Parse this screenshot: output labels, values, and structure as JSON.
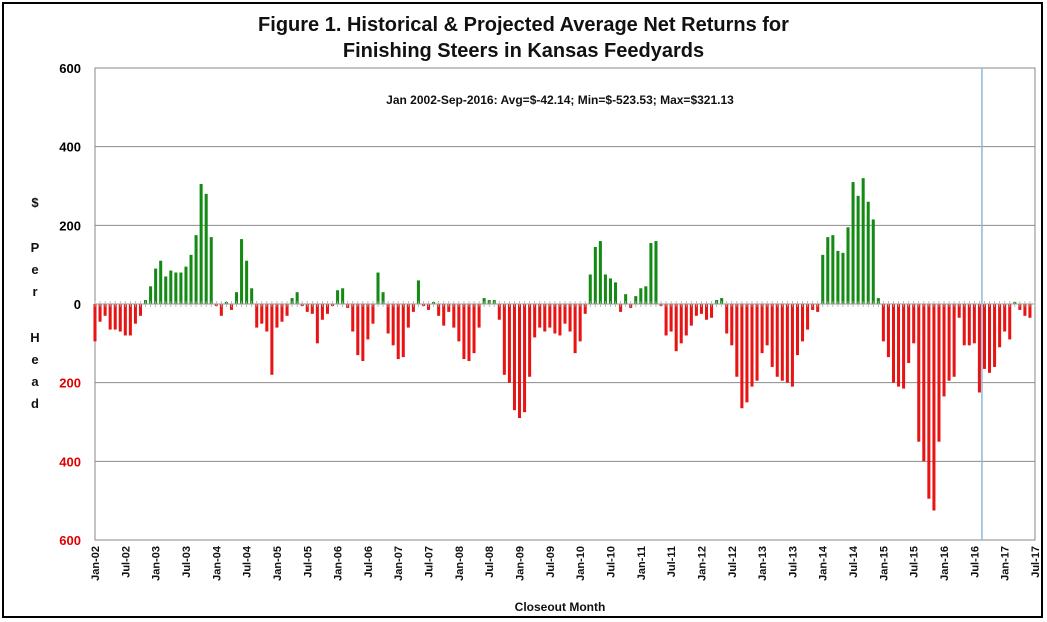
{
  "chart_data": {
    "type": "bar",
    "title": "Figure 1.  Historical & Projected Average Net Returns for",
    "title_line2": "Finishing Steers in Kansas Feedyards",
    "annotation": "Jan 2002-Sep-2016:  Avg=$-42.14; Min=$-523.53; Max=$321.13",
    "xlabel": "Closeout Month",
    "ylabel_letters": [
      "$",
      "P",
      "e",
      "r",
      "H",
      "e",
      "a",
      "d"
    ],
    "ylim": [
      -600,
      600
    ],
    "y_ticks": [
      {
        "value": 600,
        "label": "600",
        "color": "#000000"
      },
      {
        "value": 400,
        "label": "400",
        "color": "#000000"
      },
      {
        "value": 200,
        "label": "200",
        "color": "#000000"
      },
      {
        "value": 0,
        "label": "0",
        "color": "#000000"
      },
      {
        "value": -200,
        "label": "200",
        "color": "#e00000"
      },
      {
        "value": -400,
        "label": "400",
        "color": "#e00000"
      },
      {
        "value": -600,
        "label": "600",
        "color": "#e00000"
      }
    ],
    "x_start": "2002-01",
    "x_tick_labels": [
      "Jan-02",
      "Jul-02",
      "Jan-03",
      "Jul-03",
      "Jan-04",
      "Jul-04",
      "Jan-05",
      "Jul-05",
      "Jan-06",
      "Jul-06",
      "Jan-07",
      "Jul-07",
      "Jan-08",
      "Jul-08",
      "Jan-09",
      "Jul-09",
      "Jan-10",
      "Jul-10",
      "Jan-11",
      "Jul-11",
      "Jan-12",
      "Jul-12",
      "Jan-13",
      "Jul-13",
      "Jan-14",
      "Jul-14",
      "Jan-15",
      "Jul-15",
      "Jan-16",
      "Jul-16",
      "Jan-17",
      "Jul-17"
    ],
    "projection_start": "2016-09",
    "grid": true,
    "positive_color": "#138a13",
    "negative_color": "#e81414",
    "divider_color": "#8fb8dc",
    "values": [
      -95,
      -45,
      -30,
      -65,
      -65,
      -70,
      -80,
      -80,
      -50,
      -30,
      10,
      45,
      90,
      110,
      70,
      85,
      80,
      80,
      95,
      125,
      175,
      305,
      280,
      170,
      -5,
      -30,
      5,
      -15,
      30,
      165,
      110,
      40,
      -60,
      -50,
      -70,
      -180,
      -60,
      -45,
      -30,
      15,
      30,
      -5,
      -20,
      -25,
      -100,
      -40,
      -25,
      -5,
      35,
      40,
      -10,
      -70,
      -130,
      -145,
      -90,
      -50,
      80,
      30,
      -75,
      -105,
      -140,
      -135,
      -60,
      -20,
      60,
      -5,
      -15,
      5,
      -30,
      -55,
      -20,
      -60,
      -95,
      -140,
      -145,
      -125,
      -60,
      15,
      10,
      10,
      -40,
      -180,
      -200,
      -270,
      -290,
      -275,
      -185,
      -85,
      -60,
      -70,
      -60,
      -75,
      -80,
      -50,
      -70,
      -125,
      -95,
      -25,
      75,
      145,
      160,
      75,
      65,
      55,
      -20,
      25,
      -10,
      20,
      40,
      45,
      155,
      160,
      -5,
      -80,
      -70,
      -120,
      -100,
      -80,
      -55,
      -30,
      -25,
      -40,
      -35,
      10,
      15,
      -75,
      -105,
      -185,
      -265,
      -250,
      -210,
      -195,
      -125,
      -105,
      -160,
      -185,
      -195,
      -200,
      -210,
      -130,
      -95,
      -65,
      -15,
      -20,
      125,
      170,
      175,
      135,
      130,
      195,
      310,
      275,
      320,
      260,
      215,
      15,
      -95,
      -135,
      -200,
      -210,
      -215,
      -150,
      -100,
      -350,
      -400,
      -495,
      -525,
      -350,
      -235,
      -195,
      -185,
      -35,
      -105,
      -105,
      -100,
      -225,
      -165,
      -175,
      -160,
      -110,
      -70,
      -90,
      5,
      -15,
      -30,
      -35
    ]
  }
}
